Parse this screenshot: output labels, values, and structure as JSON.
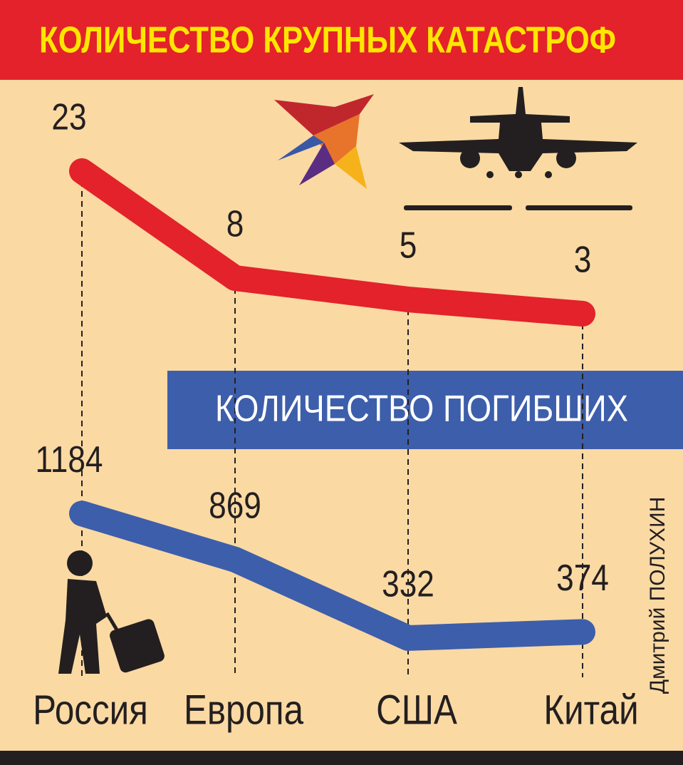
{
  "chart_data": {
    "type": "line",
    "categories": [
      "Россия",
      "Европа",
      "США",
      "Китай"
    ],
    "series": [
      {
        "name": "КОЛИЧЕСТВО КРУПНЫХ КАТАСТРОФ",
        "color": "#e3222b",
        "values": [
          23,
          8,
          5,
          3
        ]
      },
      {
        "name": "КОЛИЧЕСТВО ПОГИБШИХ",
        "color": "#3d5eab",
        "values": [
          1184,
          869,
          332,
          374
        ],
        "axis": "y2"
      }
    ],
    "ylim": [
      0,
      25
    ],
    "y2lim": [
      0,
      1200
    ],
    "credit": "Дмитрий ПОЛУХИН"
  }
}
